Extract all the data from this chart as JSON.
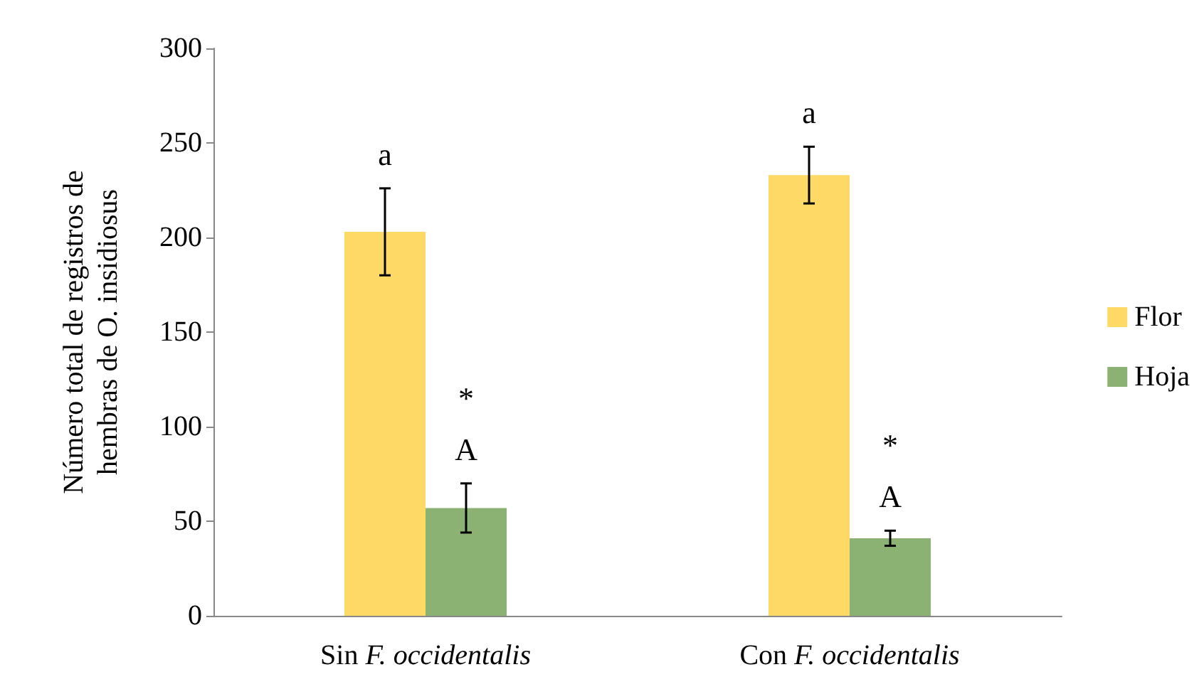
{
  "chart_data": {
    "type": "bar",
    "ylabel": "Número total de registros de\nhembras de O. insidiosus",
    "categories": [
      "Sin F. occidentalis",
      "Con F. occidentalis"
    ],
    "series": [
      {
        "name": "Flor",
        "color": "#ffd966",
        "values": [
          203,
          233
        ],
        "errors": [
          23,
          15
        ]
      },
      {
        "name": "Hoja",
        "color": "#8cb273",
        "values": [
          57,
          41
        ],
        "errors": [
          13,
          4
        ]
      }
    ],
    "ylim": [
      0,
      300
    ],
    "yticks": [
      0,
      50,
      100,
      150,
      200,
      250,
      300
    ],
    "grid": false,
    "legend": "right",
    "annotations": [
      {
        "text": "a",
        "x": "Sin F. occidentalis",
        "y": 203
      },
      {
        "text": "*\nA",
        "x": "Sin F. occidentalis",
        "y": 57
      },
      {
        "text": "a",
        "x": "Con F. occidentalis",
        "y": 233
      },
      {
        "text": "*\nA",
        "x": "Con F. occidentalis",
        "y": 41
      }
    ]
  }
}
